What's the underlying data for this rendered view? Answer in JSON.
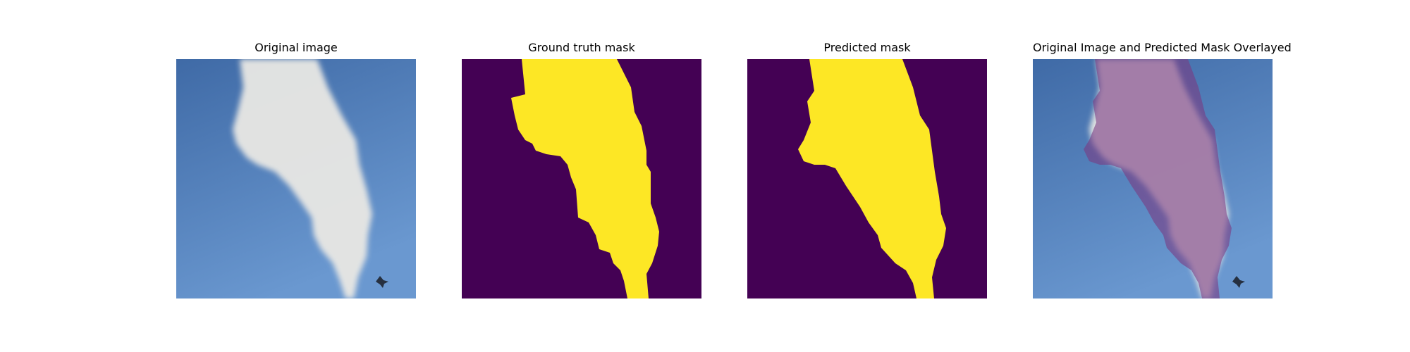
{
  "figure": {
    "panels": [
      {
        "title": "Original image"
      },
      {
        "title": "Ground truth mask"
      },
      {
        "title": "Predicted mask"
      },
      {
        "title": "Original Image and Predicted Mask Overlayed"
      }
    ]
  },
  "colors": {
    "sky_top": "#3f6aa6",
    "sky_bottom": "#6a98d0",
    "smoke": "#e9e8e4",
    "mask_background": "#440154",
    "mask_foreground": "#fde725",
    "overlay_tint": "#a06aa0"
  }
}
